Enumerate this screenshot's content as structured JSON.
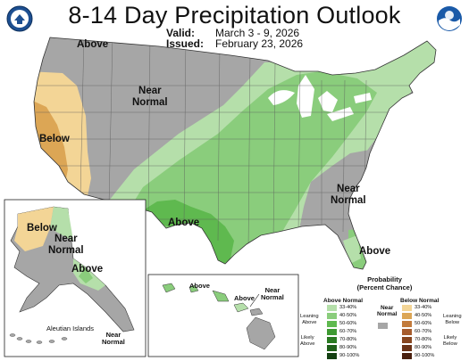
{
  "title": "8-14 Day Precipitation Outlook",
  "valid_label": "Valid:",
  "valid_value": "March 3 - 9, 2026",
  "issued_label": "Issued:",
  "issued_value": "February 23, 2026",
  "logos": {
    "left": "doc-seal-icon",
    "right": "noaa-logo-icon"
  },
  "colors": {
    "above_33_40": "#b5dfaa",
    "above_40_50": "#8acd7c",
    "above_50_60": "#5fb94f",
    "above_60_70": "#3e9a32",
    "above_70_80": "#2a7a22",
    "above_80_90": "#1f5f19",
    "above_90_100": "#144012",
    "below_33_40": "#f3d596",
    "below_40_50": "#dca655",
    "below_50_60": "#c27a3b",
    "below_60_70": "#a65c2d",
    "below_70_80": "#86451f",
    "below_80_90": "#6a3217",
    "below_90_100": "#4a200e",
    "near_normal": "#a6a6a6"
  },
  "map_labels": {
    "above_nw": "Above",
    "near_normal_west": "Near\nNormal",
    "below_ca": "Below",
    "above_south": "Above",
    "near_normal_se": "Near\nNormal",
    "above_fl": "Above",
    "ak_below": "Below",
    "ak_near_normal": "Near\nNormal",
    "ak_above": "Above",
    "aleutian": "Aleutian Islands",
    "aleutian_near_normal": "Near\nNormal",
    "hi_above_1": "Above",
    "hi_above_2": "Above",
    "hi_near_normal": "Near\nNormal"
  },
  "legend": {
    "header_1": "Probability",
    "header_2": "(Percent Chance)",
    "above_title": "Above Normal",
    "below_title": "Below Normal",
    "near_title": "Near\nNormal",
    "ranges": [
      "33-40%",
      "40-50%",
      "50-60%",
      "60-70%",
      "70-80%",
      "80-90%",
      "90-100%"
    ],
    "leaning_above": "Leaning\nAbove",
    "likely_above": "Likely\nAbove",
    "leaning_below": "Leaning\nBelow",
    "likely_below": "Likely\nBelow"
  }
}
